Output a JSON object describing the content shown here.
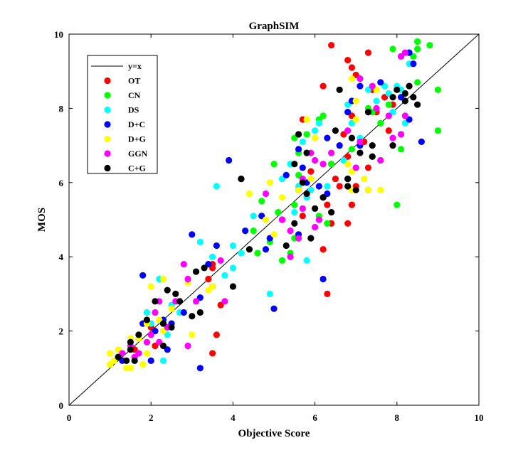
{
  "chart_data": {
    "type": "scatter",
    "title": "GraphSIM",
    "xlabel": "Objective Score",
    "ylabel": "MOS",
    "xlim": [
      0,
      10
    ],
    "ylim": [
      0,
      10
    ],
    "xticks": [
      "0",
      "2",
      "4",
      "6",
      "8",
      "10"
    ],
    "yticks": [
      "0",
      "2",
      "4",
      "6",
      "8",
      "10"
    ],
    "grid": false,
    "legend_position": "top-left",
    "reference_line": {
      "name": "y=x",
      "color": "#000000",
      "points": [
        [
          0,
          0
        ],
        [
          10,
          10
        ]
      ]
    },
    "series": [
      {
        "name": "OT",
        "color": "#ff0000",
        "points": [
          [
            6.4,
            9.7
          ],
          [
            6.8,
            9.3
          ],
          [
            7.3,
            9.5
          ],
          [
            7.0,
            8.9
          ],
          [
            6.9,
            9.1
          ],
          [
            7.4,
            8.5
          ],
          [
            7.7,
            8.3
          ],
          [
            6.2,
            8.6
          ],
          [
            5.7,
            7.7
          ],
          [
            6.9,
            7.8
          ],
          [
            7.5,
            7.9
          ],
          [
            7.9,
            8.1
          ],
          [
            6.7,
            7.3
          ],
          [
            7.2,
            7.1
          ],
          [
            7.8,
            7.4
          ],
          [
            5.9,
            6.3
          ],
          [
            6.4,
            6.5
          ],
          [
            6.8,
            6.7
          ],
          [
            7.3,
            6.4
          ],
          [
            6.5,
            6.1
          ],
          [
            7.0,
            5.9
          ],
          [
            6.6,
            5.9
          ],
          [
            7.3,
            5.8
          ],
          [
            6.3,
            5.4
          ],
          [
            6.9,
            5.4
          ],
          [
            5.7,
            5.1
          ],
          [
            6.1,
            5.0
          ],
          [
            6.8,
            4.9
          ],
          [
            6.4,
            4.9
          ],
          [
            6.2,
            4.2
          ],
          [
            6.3,
            3.0
          ],
          [
            3.5,
            3.8
          ],
          [
            3.5,
            3.7
          ],
          [
            3.4,
            3.4
          ],
          [
            3.5,
            3.2
          ],
          [
            3.7,
            2.7
          ],
          [
            3.6,
            1.9
          ],
          [
            3.5,
            1.4
          ],
          [
            2.0,
            2.1
          ],
          [
            1.7,
            1.8
          ],
          [
            1.6,
            1.5
          ],
          [
            2.1,
            1.6
          ]
        ]
      },
      {
        "name": "CN",
        "color": "#00ff00",
        "points": [
          [
            8.5,
            9.8
          ],
          [
            8.8,
            9.7
          ],
          [
            7.9,
            9.6
          ],
          [
            8.5,
            9.6
          ],
          [
            8.4,
            9.4
          ],
          [
            9.0,
            8.5
          ],
          [
            8.5,
            8.7
          ],
          [
            9.0,
            7.4
          ],
          [
            8.2,
            8.2
          ],
          [
            7.8,
            8.1
          ],
          [
            7.3,
            8.0
          ],
          [
            7.4,
            7.9
          ],
          [
            7.6,
            7.6
          ],
          [
            8.1,
            6.9
          ],
          [
            7.4,
            6.7
          ],
          [
            6.9,
            6.9
          ],
          [
            7.0,
            6.4
          ],
          [
            6.4,
            6.5
          ],
          [
            6.8,
            5.9
          ],
          [
            5.5,
            7.2
          ],
          [
            5.8,
            7.3
          ],
          [
            6.1,
            7.7
          ],
          [
            6.2,
            7.8
          ],
          [
            5.6,
            6.8
          ],
          [
            5.8,
            6.8
          ],
          [
            5.6,
            6.2
          ],
          [
            5.7,
            6.0
          ],
          [
            5.0,
            6.5
          ],
          [
            4.7,
            5.5
          ],
          [
            5.1,
            5.2
          ],
          [
            5.5,
            5.4
          ],
          [
            6.1,
            5.1
          ],
          [
            6.3,
            4.9
          ],
          [
            5.5,
            4.5
          ],
          [
            5.2,
            3.9
          ],
          [
            5.4,
            4.1
          ],
          [
            4.9,
            4.4
          ],
          [
            4.6,
            4.1
          ],
          [
            4.5,
            4.7
          ],
          [
            8.0,
            5.4
          ]
        ]
      },
      {
        "name": "DS",
        "color": "#00ffff",
        "points": [
          [
            7.7,
            8.6
          ],
          [
            8.0,
            8.6
          ],
          [
            7.8,
            8.4
          ],
          [
            8.1,
            8.5
          ],
          [
            7.9,
            7.9
          ],
          [
            8.2,
            7.6
          ],
          [
            8.3,
            9.2
          ],
          [
            7.3,
            8.5
          ],
          [
            7.5,
            8.2
          ],
          [
            6.8,
            8.1
          ],
          [
            6.9,
            7.6
          ],
          [
            7.1,
            7.2
          ],
          [
            7.6,
            6.6
          ],
          [
            6.7,
            6.6
          ],
          [
            6.1,
            7.6
          ],
          [
            5.7,
            7.1
          ],
          [
            5.6,
            6.9
          ],
          [
            6.0,
            7.4
          ],
          [
            5.4,
            6.5
          ],
          [
            5.2,
            6.1
          ],
          [
            5.6,
            5.9
          ],
          [
            5.9,
            5.8
          ],
          [
            6.3,
            5.9
          ],
          [
            5.8,
            5.6
          ],
          [
            5.5,
            5.2
          ],
          [
            4.5,
            5.1
          ],
          [
            4.2,
            4.1
          ],
          [
            4.0,
            3.7
          ],
          [
            4.0,
            4.3
          ],
          [
            3.6,
            5.9
          ],
          [
            3.5,
            4.0
          ],
          [
            3.2,
            4.4
          ],
          [
            3.1,
            3.6
          ],
          [
            3.8,
            3.5
          ],
          [
            4.9,
            3.0
          ],
          [
            5.8,
            3.9
          ],
          [
            2.7,
            2.5
          ],
          [
            2.5,
            2.7
          ],
          [
            2.2,
            3.4
          ],
          [
            2.0,
            2.2
          ],
          [
            1.9,
            2.5
          ],
          [
            2.4,
            1.9
          ],
          [
            2.3,
            1.2
          ]
        ]
      },
      {
        "name": "D+C",
        "color": "#0000ff",
        "points": [
          [
            8.4,
            9.2
          ],
          [
            8.3,
            9.5
          ],
          [
            7.6,
            8.7
          ],
          [
            7.1,
            8.6
          ],
          [
            6.9,
            8.2
          ],
          [
            6.8,
            7.9
          ],
          [
            7.3,
            7.9
          ],
          [
            8.1,
            8.3
          ],
          [
            8.3,
            7.7
          ],
          [
            8.6,
            7.1
          ],
          [
            7.1,
            7.0
          ],
          [
            6.6,
            7.0
          ],
          [
            6.3,
            7.2
          ],
          [
            5.6,
            6.9
          ],
          [
            5.3,
            6.2
          ],
          [
            5.7,
            6.4
          ],
          [
            5.8,
            6.0
          ],
          [
            5.6,
            5.8
          ],
          [
            6.3,
            5.7
          ],
          [
            6.1,
            5.9
          ],
          [
            6.2,
            5.6
          ],
          [
            6.8,
            6.1
          ],
          [
            4.2,
            6.1
          ],
          [
            3.9,
            6.6
          ],
          [
            4.7,
            5.1
          ],
          [
            5.2,
            5.0
          ],
          [
            4.9,
            4.5
          ],
          [
            4.8,
            4.2
          ],
          [
            5.6,
            4.6
          ],
          [
            4.3,
            4.7
          ],
          [
            3.6,
            4.3
          ],
          [
            3.4,
            3.8
          ],
          [
            3.2,
            2.9
          ],
          [
            3.0,
            4.6
          ],
          [
            2.3,
            2.3
          ],
          [
            2.5,
            2.2
          ],
          [
            2.8,
            2.5
          ],
          [
            2.1,
            2.0
          ],
          [
            1.8,
            2.2
          ],
          [
            1.8,
            3.5
          ],
          [
            2.0,
            1.2
          ],
          [
            3.2,
            1.0
          ],
          [
            5.0,
            2.6
          ],
          [
            6.2,
            3.4
          ],
          [
            2.4,
            1.5
          ],
          [
            1.3,
            1.2
          ]
        ]
      },
      {
        "name": "D+G",
        "color": "#ffff00",
        "points": [
          [
            7.5,
            8.5
          ],
          [
            7.3,
            7.9
          ],
          [
            7.0,
            7.7
          ],
          [
            6.9,
            8.8
          ],
          [
            7.0,
            8.2
          ],
          [
            5.8,
            7.7
          ],
          [
            6.0,
            7.2
          ],
          [
            6.4,
            6.8
          ],
          [
            6.8,
            6.5
          ],
          [
            6.9,
            6.3
          ],
          [
            7.2,
            6.1
          ],
          [
            7.3,
            5.8
          ],
          [
            6.9,
            5.8
          ],
          [
            7.6,
            5.8
          ],
          [
            5.9,
            6.1
          ],
          [
            5.6,
            5.8
          ],
          [
            4.9,
            6.0
          ],
          [
            4.4,
            5.7
          ],
          [
            5.2,
            5.6
          ],
          [
            5.0,
            4.6
          ],
          [
            4.8,
            5.0
          ],
          [
            3.5,
            3.2
          ],
          [
            3.4,
            3.1
          ],
          [
            2.9,
            3.3
          ],
          [
            3.0,
            1.9
          ],
          [
            2.3,
            3.4
          ],
          [
            2.0,
            3.2
          ],
          [
            2.5,
            2.6
          ],
          [
            2.2,
            2.3
          ],
          [
            1.9,
            2.2
          ],
          [
            2.3,
            2.0
          ],
          [
            1.7,
            1.8
          ],
          [
            1.5,
            1.8
          ],
          [
            1.2,
            1.5
          ],
          [
            1.0,
            1.4
          ],
          [
            1.0,
            1.1
          ],
          [
            1.1,
            1.2
          ],
          [
            1.5,
            1.0
          ],
          [
            1.4,
            1.0
          ],
          [
            1.9,
            1.4
          ],
          [
            1.8,
            1.1
          ]
        ]
      },
      {
        "name": "GGN",
        "color": "#ff00ff",
        "points": [
          [
            8.2,
            9.5
          ],
          [
            8.1,
            9.4
          ],
          [
            7.4,
            8.6
          ],
          [
            7.1,
            8.8
          ],
          [
            7.5,
            8.0
          ],
          [
            7.8,
            7.8
          ],
          [
            8.1,
            7.3
          ],
          [
            8.2,
            7.8
          ],
          [
            7.9,
            7.2
          ],
          [
            7.1,
            7.1
          ],
          [
            6.8,
            7.4
          ],
          [
            6.4,
            6.8
          ],
          [
            7.0,
            6.4
          ],
          [
            7.6,
            6.6
          ],
          [
            5.7,
            6.1
          ],
          [
            6.0,
            6.6
          ],
          [
            5.9,
            6.8
          ],
          [
            6.2,
            6.5
          ],
          [
            5.7,
            5.3
          ],
          [
            5.2,
            5.0
          ],
          [
            5.6,
            4.5
          ],
          [
            5.4,
            4.7
          ],
          [
            4.8,
            5.7
          ],
          [
            5.4,
            4.0
          ],
          [
            6.1,
            5.0
          ],
          [
            6.0,
            4.8
          ],
          [
            3.7,
            3.9
          ],
          [
            3.8,
            2.8
          ],
          [
            2.9,
            3.4
          ],
          [
            2.8,
            3.8
          ],
          [
            3.1,
            2.8
          ],
          [
            2.6,
            2.8
          ],
          [
            2.4,
            2.1
          ],
          [
            2.1,
            2.5
          ],
          [
            2.2,
            1.7
          ],
          [
            2.0,
            1.9
          ],
          [
            1.9,
            1.7
          ],
          [
            1.7,
            1.4
          ],
          [
            1.5,
            1.6
          ],
          [
            1.6,
            1.3
          ],
          [
            1.3,
            1.4
          ],
          [
            2.9,
            1.6
          ],
          [
            2.2,
            2.8
          ]
        ]
      },
      {
        "name": "C+G",
        "color": "#000000",
        "points": [
          [
            8.0,
            8.5
          ],
          [
            8.3,
            8.6
          ],
          [
            8.2,
            8.4
          ],
          [
            8.4,
            8.3
          ],
          [
            8.2,
            8.2
          ],
          [
            8.5,
            8.1
          ],
          [
            7.9,
            8.3
          ],
          [
            6.6,
            8.5
          ],
          [
            7.3,
            7.9
          ],
          [
            6.5,
            7.4
          ],
          [
            6.9,
            7.2
          ],
          [
            7.1,
            6.8
          ],
          [
            7.4,
            7.0
          ],
          [
            7.9,
            7.0
          ],
          [
            7.4,
            6.7
          ],
          [
            6.8,
            6.1
          ],
          [
            6.8,
            5.9
          ],
          [
            7.0,
            5.8
          ],
          [
            5.6,
            7.3
          ],
          [
            5.8,
            6.8
          ],
          [
            5.5,
            6.5
          ],
          [
            5.7,
            6.0
          ],
          [
            5.8,
            5.7
          ],
          [
            6.0,
            5.3
          ],
          [
            6.2,
            5.6
          ],
          [
            6.4,
            5.2
          ],
          [
            5.9,
            4.5
          ],
          [
            5.3,
            4.3
          ],
          [
            5.5,
            4.9
          ],
          [
            4.4,
            4.2
          ],
          [
            4.2,
            6.1
          ],
          [
            4.0,
            3.2
          ],
          [
            3.3,
            3.7
          ],
          [
            3.1,
            3.6
          ],
          [
            3.2,
            2.5
          ],
          [
            3.0,
            2.4
          ],
          [
            2.6,
            3.0
          ],
          [
            2.4,
            3.1
          ],
          [
            2.5,
            2.1
          ],
          [
            2.3,
            2.2
          ],
          [
            2.1,
            2.8
          ],
          [
            1.9,
            2.3
          ],
          [
            1.7,
            1.9
          ],
          [
            1.5,
            1.7
          ],
          [
            1.6,
            1.2
          ],
          [
            1.4,
            1.2
          ],
          [
            1.5,
            1.5
          ],
          [
            1.2,
            1.3
          ],
          [
            2.7,
            2.8
          ],
          [
            2.3,
            1.6
          ]
        ]
      }
    ]
  }
}
